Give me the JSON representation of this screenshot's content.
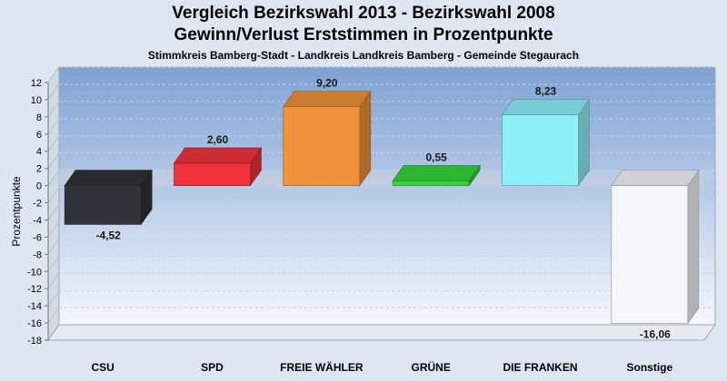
{
  "chart_data": {
    "type": "bar",
    "title": "Vergleich Bezirkswahl 2013 - Bezirkswahl 2008",
    "subtitle": "Gewinn/Verlust Erststimmen in Prozentpunkte",
    "subtitle2": "Stimmkreis Bamberg-Stadt - Landkreis Landkreis Bamberg - Gemeinde Stegaurach",
    "ylabel": "Prozentpunkte",
    "xlabel": "",
    "ylim": [
      -18,
      12
    ],
    "yticks": [
      12,
      10,
      8,
      6,
      4,
      2,
      0,
      -2,
      -4,
      -6,
      -8,
      -10,
      -12,
      -14,
      -16,
      -18
    ],
    "categories": [
      "CSU",
      "SPD",
      "FREIE WÄHLER",
      "GRÜNE",
      "DIE FRANKEN",
      "Sonstige"
    ],
    "values": [
      -4.52,
      2.6,
      9.2,
      0.55,
      8.23,
      -16.06
    ],
    "value_labels": [
      "-4,52",
      "2,60",
      "9,20",
      "0,55",
      "8,23",
      "-16,06"
    ],
    "colors": [
      "#2f3238",
      "#f0333a",
      "#f0923a",
      "#35d43a",
      "#8ef0f8",
      "#f4f6fa"
    ],
    "grid": true,
    "legend": "none"
  }
}
